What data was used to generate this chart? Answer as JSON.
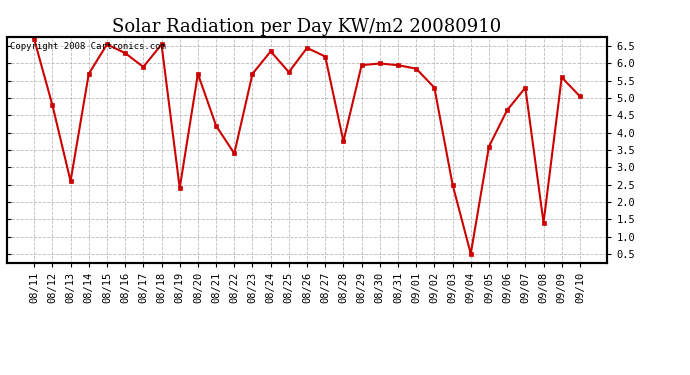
{
  "title": "Solar Radiation per Day KW/m2 20080910",
  "copyright_text": "Copyright 2008 Cartronics.com",
  "dates": [
    "08/11",
    "08/12",
    "08/13",
    "08/14",
    "08/15",
    "08/16",
    "08/17",
    "08/18",
    "08/19",
    "08/20",
    "08/21",
    "08/22",
    "08/23",
    "08/24",
    "08/25",
    "08/26",
    "08/27",
    "08/28",
    "08/29",
    "08/30",
    "08/31",
    "09/01",
    "09/02",
    "09/03",
    "09/04",
    "09/05",
    "09/06",
    "09/07",
    "09/08",
    "09/09",
    "09/10"
  ],
  "values": [
    6.7,
    4.8,
    2.6,
    5.7,
    6.55,
    6.3,
    5.9,
    6.55,
    2.4,
    5.7,
    4.2,
    3.4,
    5.7,
    6.35,
    5.75,
    6.45,
    6.2,
    3.75,
    5.95,
    6.0,
    5.95,
    5.85,
    5.3,
    2.5,
    0.5,
    3.6,
    4.65,
    5.3,
    1.4,
    5.6,
    5.05
  ],
  "line_color": "#cc0000",
  "marker_color": "#cc0000",
  "bg_color": "#ffffff",
  "grid_color": "#aaaaaa",
  "ylim": [
    0.25,
    6.75
  ],
  "yticks": [
    0.5,
    1.0,
    1.5,
    2.0,
    2.5,
    3.0,
    3.5,
    4.0,
    4.5,
    5.0,
    5.5,
    6.0,
    6.5
  ],
  "title_fontsize": 13,
  "copyright_fontsize": 6.5,
  "tick_fontsize": 7.5
}
